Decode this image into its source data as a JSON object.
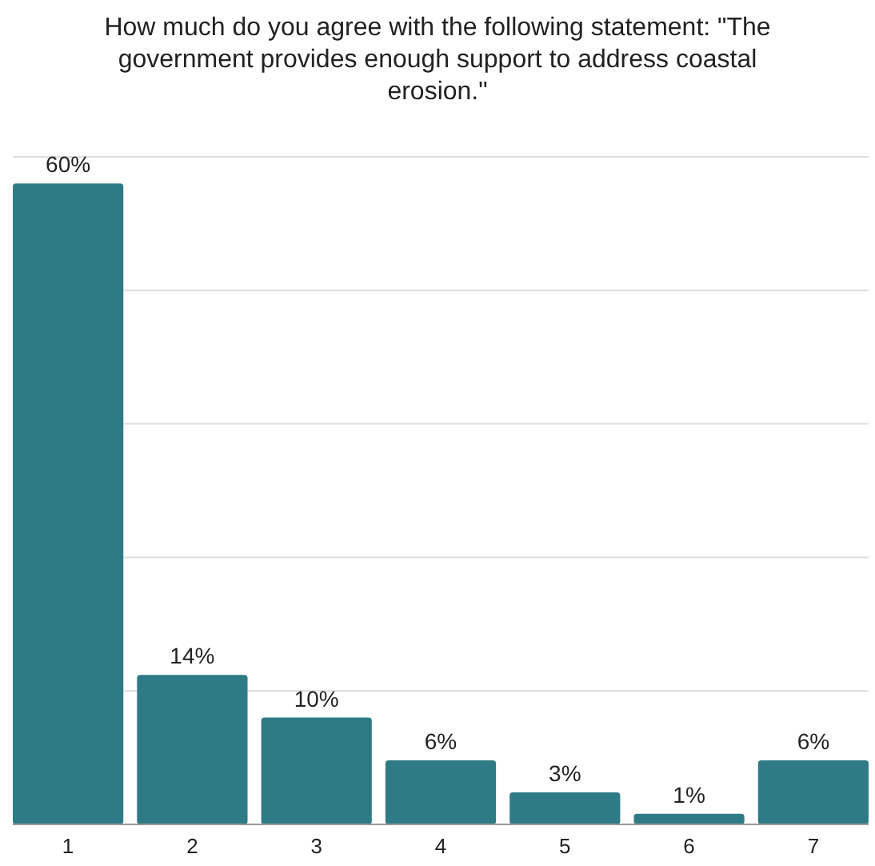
{
  "chart_data": {
    "type": "bar",
    "title": "How much do you agree with the following statement: \"The government provides enough support to address coastal erosion.\"",
    "categories": [
      "1",
      "2",
      "3",
      "4",
      "5",
      "6",
      "7"
    ],
    "values": [
      60,
      14,
      10,
      6,
      3,
      1,
      6
    ],
    "value_labels": [
      "60%",
      "14%",
      "10%",
      "6%",
      "3%",
      "1%",
      "6%"
    ],
    "color": "#2f7b85",
    "ylim": [
      0,
      62.5
    ],
    "yticks": [
      {
        "value": 0,
        "label": null
      },
      {
        "value": 12.5,
        "label": null
      },
      {
        "value": 25,
        "label": null
      },
      {
        "value": 37.5,
        "label": null
      },
      {
        "value": 50,
        "label": null
      },
      {
        "value": 62.5,
        "label": null
      }
    ],
    "grid": "y",
    "tick_labels": "x"
  }
}
